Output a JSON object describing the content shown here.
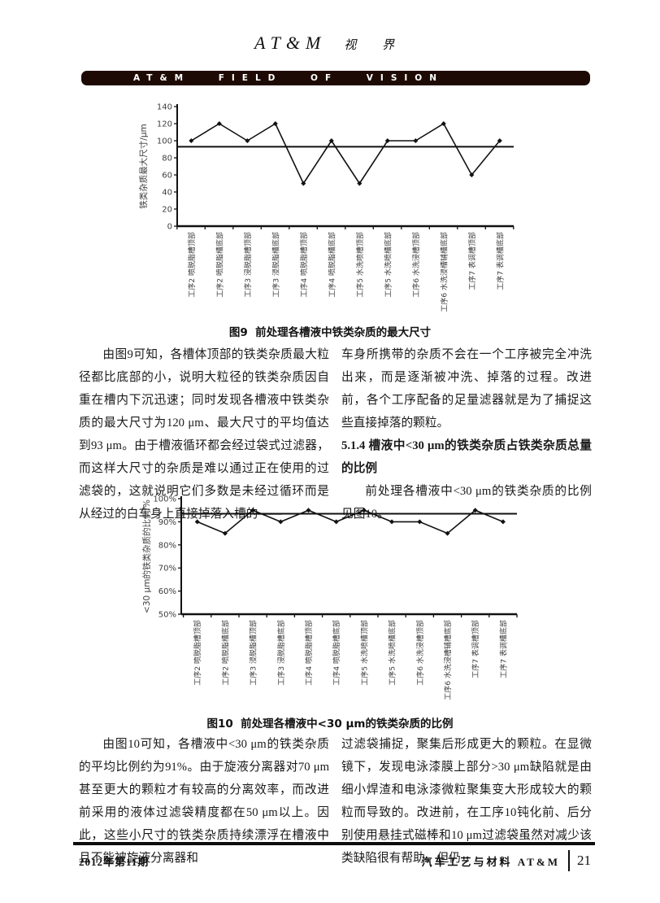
{
  "header": {
    "journal_title_latin": "AT&M",
    "journal_title_cn": "视 界",
    "banner_text": "AT&M FIELD OF VISION"
  },
  "chart_data": [
    {
      "type": "line",
      "title": "图9  前处理各槽液中铁类杂质的最大尺寸",
      "ylabel": "铁类杂质最大尺寸/μm",
      "xlabel": "",
      "ylim": [
        0,
        140
      ],
      "yticks": [
        "0",
        "20",
        "40",
        "60",
        "80",
        "100",
        "120",
        "140"
      ],
      "grid": false,
      "legend": null,
      "categories": [
        "工序2 喷脱脂槽顶部",
        "工序2 喷脱脂槽底部",
        "工序3 浸脱脂槽顶部",
        "工序3 浸脱脂槽底部",
        "工序4 喷脱脂槽顶部",
        "工序4 喷脱脂槽底部",
        "工序5 水洗喷槽顶部",
        "工序5 水洗喷槽底部",
        "工序6 水洗浸槽顶部",
        "工序6 水洗浸槽辅槽底部",
        "工序7 表调槽顶部",
        "工序7 表调槽底部"
      ],
      "values": [
        100,
        120,
        100,
        120,
        50,
        100,
        50,
        100,
        100,
        120,
        60,
        100
      ],
      "reference_line": 93,
      "line_color": "#111111",
      "marker": "diamond"
    },
    {
      "type": "line",
      "title": "图10  前处理各槽液中<30 μm的铁类杂质的比例",
      "ylabel": "<30 μm的铁类杂质的比例/%",
      "xlabel": "",
      "ylim": [
        50,
        100
      ],
      "yticks": [
        "50%",
        "60%",
        "70%",
        "80%",
        "90%",
        "100%"
      ],
      "grid": false,
      "legend": null,
      "categories": [
        "工序2 喷脱脂槽顶部",
        "工序2 喷脱脂槽底部",
        "工序3 浸脱脂槽顶部",
        "工序3 浸脱脂槽底部",
        "工序4 喷脱脂槽顶部",
        "工序4 喷脱脂槽底部",
        "工序5 水洗喷槽顶部",
        "工序5 水洗喷槽底部",
        "工序6 水洗浸槽顶部",
        "工序6 水洗浸槽辅槽底部",
        "工序7 表调槽顶部",
        "工序7 表调槽底部"
      ],
      "values": [
        90,
        85,
        95,
        90,
        95,
        90,
        95,
        90,
        90,
        85,
        95,
        90
      ],
      "values_unit": "%",
      "reference_line": 93.5,
      "line_color": "#111111",
      "marker": "diamond"
    }
  ],
  "body": {
    "col1_left": "由图9可知，各槽体顶部的铁类杂质最大粒径都比底部的小，说明大粒径的铁类杂质因自重在槽内下沉迅速；同时发现各槽液中铁类杂质的最大尺寸为120 μm、最大尺寸的平均值达到93 μm。由于槽液循环都会经过袋式过滤器，而这样大尺寸的杂质是难以通过正在使用的过滤袋的，这就说明它们多数是未经过循环而是从经过的白车身上直接掉落入槽的——",
    "col1_right_para1": "车身所携带的杂质不会在一个工序被完全冲洗出来，而是逐渐被冲洗、掉落的过程。改进前，各个工序配备的足量滤器就是为了捕捉这些直接掉落的颗粒。",
    "heading_5_1_4": "5.1.4 槽液中<30 μm的铁类杂质占铁类杂质总量的比例",
    "col1_right_para2": "前处理各槽液中<30 μm的铁类杂质的比例见图10。",
    "col2_left": "由图10可知，各槽液中<30 μm的铁类杂质的平均比例约为91%。由于旋液分离器对70 μm甚至更大的颗粒才有较高的分离效率，而改进前采用的液体过滤袋精度都在50 μm以上。因此，这些小尺寸的铁类杂质持续漂浮在槽液中且不能被旋液分离器和",
    "col2_right": "过滤袋捕捉，聚集后形成更大的颗粒。在显微镜下，发现电泳漆膜上部分>30 μm缺陷就是由细小焊渣和电泳漆微粒聚集变大形成较大的颗粒而导致的。改进前，在工序10钝化前、后分别使用悬挂式磁棒和10 μm过滤袋虽然对减少该类缺陷很有帮助，但仍"
  },
  "footer": {
    "issue": "2012年第11期",
    "journal_name": "汽车工艺与材料  AT&M",
    "page_number": "21"
  }
}
